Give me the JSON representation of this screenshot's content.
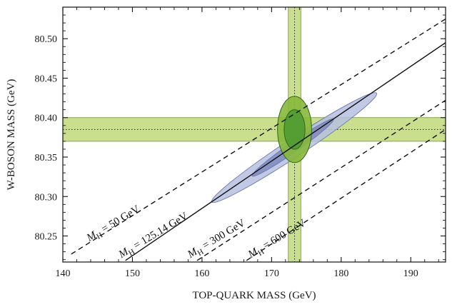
{
  "chart_data": {
    "type": "scatter",
    "xlabel": "TOP-QUARK MASS (GeV)",
    "ylabel": "W-BOSON MASS (GeV)",
    "xlim": [
      140,
      195
    ],
    "ylim": [
      80.217,
      80.54
    ],
    "x_ticks": [
      140,
      150,
      160,
      170,
      180,
      190
    ],
    "y_ticks": [
      80.25,
      80.3,
      80.35,
      80.4,
      80.45,
      80.5
    ],
    "grid": false,
    "colors": {
      "band": "#c9df8e",
      "band_edge": "#6f9630",
      "ellipse_light": "#b6bfe0",
      "ellipse_dark": "#7f89bd",
      "ellipse_edge": "#6b76b0",
      "green_outer": "#86b83a",
      "green_inner": "#4e9a32",
      "green_edge": "#2f6a1c",
      "line": "#111111"
    },
    "bands": [
      {
        "name": "top-quark mass measurement",
        "orientation": "vertical",
        "center": 173.3,
        "low": 172.4,
        "high": 174.2
      },
      {
        "name": "W-boson mass measurement",
        "orientation": "horizontal",
        "center": 80.385,
        "low": 80.37,
        "high": 80.4
      }
    ],
    "ellipses": [
      {
        "name": "measurement 68%",
        "center": [
          173.3,
          80.385
        ],
        "half_x": 1.5,
        "half_y": 0.025,
        "fill": "green_inner"
      },
      {
        "name": "measurement 95%",
        "center": [
          173.3,
          80.385
        ],
        "half_x": 2.45,
        "half_y": 0.042,
        "fill": "green_outer"
      },
      {
        "name": "standard model fit inner",
        "points": [
          [
            167.2,
            80.326
          ],
          [
            178.9,
            80.398
          ]
        ],
        "half_minor": 0.0062,
        "fill": "ellipse_dark"
      },
      {
        "name": "standard model fit outer",
        "points": [
          [
            161.4,
            80.293
          ],
          [
            185.1,
            80.431
          ]
        ],
        "half_minor": 0.0115,
        "fill": "ellipse_light"
      }
    ],
    "lines": [
      {
        "label_main": "M",
        "label_sub": "H",
        "label_rest": " = 50 GeV",
        "style": "dashed",
        "points": [
          [
            141.2,
            80.227
          ],
          [
            195,
            80.525
          ]
        ],
        "label_at": [
          143.8,
          80.243
        ],
        "angle": -31
      },
      {
        "label_main": "M",
        "label_sub": "H",
        "label_rest": " = 125.14 GeV",
        "style": "solid",
        "points": [
          [
            149.0,
            80.219
          ],
          [
            195,
            80.495
          ]
        ],
        "label_at": [
          148.4,
          80.222
        ],
        "angle": -31
      },
      {
        "label_main": "M",
        "label_sub": "H",
        "label_rest": " = 300 GeV",
        "style": "dashed",
        "points": [
          [
            159.3,
            80.219
          ],
          [
            195,
            80.422
          ]
        ],
        "label_at": [
          158.3,
          80.222
        ],
        "angle": -31
      },
      {
        "label_main": "M",
        "label_sub": "H",
        "label_rest": " = 600 GeV",
        "style": "dashed",
        "points": [
          [
            166.4,
            80.219
          ],
          [
            195,
            80.385
          ]
        ],
        "label_at": [
          167.0,
          80.222
        ],
        "angle": -31
      }
    ]
  }
}
